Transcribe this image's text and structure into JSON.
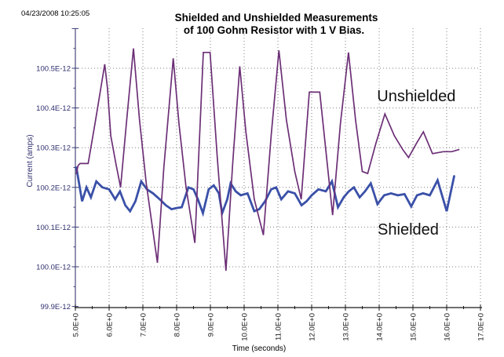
{
  "page": {
    "timestamp": "04/23/2008 10:25:05"
  },
  "chart_data": {
    "type": "line",
    "title_line1": "Shielded and Unshielded Measurements",
    "title_line2": "of 100 Gohm Resistor with 1 V Bias.",
    "grid": true,
    "x_axis": {
      "title": "Time (seconds)",
      "range": [
        5.0,
        17.0
      ],
      "ticks": [
        {
          "value": 5,
          "label": "5.0E+0"
        },
        {
          "value": 6,
          "label": "6.0E+0"
        },
        {
          "value": 7,
          "label": "7.0E+0"
        },
        {
          "value": 8,
          "label": "8.0E+0"
        },
        {
          "value": 9,
          "label": "9.0E+0"
        },
        {
          "value": 10,
          "label": "10.0E+0"
        },
        {
          "value": 11,
          "label": "11.0E+0"
        },
        {
          "value": 12,
          "label": "12.0E+0"
        },
        {
          "value": 13,
          "label": "13.0E+0"
        },
        {
          "value": 14,
          "label": "14.0E+0"
        },
        {
          "value": 15,
          "label": "15.0E+0"
        },
        {
          "value": 16,
          "label": "16.0E+0"
        },
        {
          "value": 17,
          "label": "17.0E+0"
        }
      ]
    },
    "y_axis": {
      "title": "Current (amps)",
      "values_unit": "x1E-12 amps",
      "range": [
        99.9,
        100.6
      ],
      "ticks": [
        {
          "value": 100.5,
          "label": "100.5E-12"
        },
        {
          "value": 100.4,
          "label": "100.4E-12"
        },
        {
          "value": 100.3,
          "label": "100.3E-12"
        },
        {
          "value": 100.2,
          "label": "100.2E-12"
        },
        {
          "value": 100.1,
          "label": "100.1E-12"
        },
        {
          "value": 100.0,
          "label": "100.0E-12"
        },
        {
          "value": 99.9,
          "label": "99.9E-12"
        }
      ]
    },
    "annotations": [
      {
        "text": "Unshielded",
        "t": 15.1,
        "v": 100.417
      },
      {
        "text": "Shielded",
        "t": 14.86,
        "v": 100.081
      }
    ],
    "series": [
      {
        "name": "Unshielded",
        "color": "#6c2f76",
        "stroke_width": 1.7,
        "points": [
          [
            5.03,
            100.235
          ],
          [
            5.08,
            100.255
          ],
          [
            5.14,
            100.26
          ],
          [
            5.38,
            100.26
          ],
          [
            5.6,
            100.37
          ],
          [
            5.87,
            100.51
          ],
          [
            5.95,
            100.45
          ],
          [
            6.05,
            100.33
          ],
          [
            6.2,
            100.26
          ],
          [
            6.34,
            100.2
          ],
          [
            6.52,
            100.37
          ],
          [
            6.72,
            100.55
          ],
          [
            6.9,
            100.37
          ],
          [
            7.1,
            100.21
          ],
          [
            7.43,
            100.01
          ],
          [
            7.62,
            100.25
          ],
          [
            7.9,
            100.525
          ],
          [
            8.07,
            100.36
          ],
          [
            8.28,
            100.2
          ],
          [
            8.54,
            100.06
          ],
          [
            8.79,
            100.54
          ],
          [
            8.99,
            100.54
          ],
          [
            9.2,
            100.28
          ],
          [
            9.46,
            99.99
          ],
          [
            9.66,
            100.26
          ],
          [
            9.87,
            100.505
          ],
          [
            10.05,
            100.34
          ],
          [
            10.3,
            100.17
          ],
          [
            10.57,
            100.08
          ],
          [
            10.8,
            100.33
          ],
          [
            11.03,
            100.545
          ],
          [
            11.25,
            100.37
          ],
          [
            11.5,
            100.24
          ],
          [
            11.69,
            100.17
          ],
          [
            11.93,
            100.44
          ],
          [
            12.24,
            100.44
          ],
          [
            12.45,
            100.27
          ],
          [
            12.62,
            100.13
          ],
          [
            12.85,
            100.36
          ],
          [
            13.09,
            100.54
          ],
          [
            13.3,
            100.37
          ],
          [
            13.5,
            100.24
          ],
          [
            13.66,
            100.235
          ],
          [
            13.9,
            100.31
          ],
          [
            14.17,
            100.385
          ],
          [
            14.45,
            100.33
          ],
          [
            14.7,
            100.295
          ],
          [
            14.87,
            100.275
          ],
          [
            15.1,
            100.31
          ],
          [
            15.31,
            100.34
          ],
          [
            15.58,
            100.285
          ],
          [
            15.9,
            100.29
          ],
          [
            16.15,
            100.29
          ],
          [
            16.36,
            100.295
          ]
        ]
      },
      {
        "name": "Shielded",
        "color": "#3a50a8",
        "stroke_width": 2.8,
        "points": [
          [
            5.03,
            100.25
          ],
          [
            5.2,
            100.165
          ],
          [
            5.33,
            100.2
          ],
          [
            5.46,
            100.175
          ],
          [
            5.62,
            100.215
          ],
          [
            5.8,
            100.2
          ],
          [
            6.0,
            100.195
          ],
          [
            6.18,
            100.17
          ],
          [
            6.32,
            100.19
          ],
          [
            6.48,
            100.155
          ],
          [
            6.62,
            100.14
          ],
          [
            6.78,
            100.165
          ],
          [
            6.95,
            100.215
          ],
          [
            7.12,
            100.195
          ],
          [
            7.3,
            100.185
          ],
          [
            7.5,
            100.17
          ],
          [
            7.68,
            100.155
          ],
          [
            7.85,
            100.145
          ],
          [
            8.0,
            100.148
          ],
          [
            8.15,
            100.15
          ],
          [
            8.35,
            100.2
          ],
          [
            8.5,
            100.195
          ],
          [
            8.63,
            100.17
          ],
          [
            8.78,
            100.135
          ],
          [
            8.95,
            100.195
          ],
          [
            9.1,
            100.205
          ],
          [
            9.25,
            100.185
          ],
          [
            9.35,
            100.135
          ],
          [
            9.5,
            100.17
          ],
          [
            9.6,
            100.21
          ],
          [
            9.75,
            100.19
          ],
          [
            9.9,
            100.18
          ],
          [
            10.1,
            100.185
          ],
          [
            10.3,
            100.14
          ],
          [
            10.45,
            100.145
          ],
          [
            10.62,
            100.165
          ],
          [
            10.8,
            100.195
          ],
          [
            10.95,
            100.2
          ],
          [
            11.1,
            100.17
          ],
          [
            11.3,
            100.19
          ],
          [
            11.5,
            100.185
          ],
          [
            11.7,
            100.155
          ],
          [
            11.85,
            100.165
          ],
          [
            12.0,
            100.18
          ],
          [
            12.2,
            100.195
          ],
          [
            12.42,
            100.19
          ],
          [
            12.6,
            100.215
          ],
          [
            12.78,
            100.15
          ],
          [
            12.95,
            100.175
          ],
          [
            13.1,
            100.19
          ],
          [
            13.25,
            100.2
          ],
          [
            13.42,
            100.175
          ],
          [
            13.58,
            100.19
          ],
          [
            13.75,
            100.21
          ],
          [
            13.95,
            100.158
          ],
          [
            14.15,
            100.18
          ],
          [
            14.35,
            100.185
          ],
          [
            14.55,
            100.18
          ],
          [
            14.75,
            100.183
          ],
          [
            14.95,
            100.152
          ],
          [
            15.12,
            100.18
          ],
          [
            15.3,
            100.185
          ],
          [
            15.5,
            100.18
          ],
          [
            15.73,
            100.218
          ],
          [
            16.0,
            100.14
          ],
          [
            16.22,
            100.228
          ]
        ]
      }
    ]
  }
}
